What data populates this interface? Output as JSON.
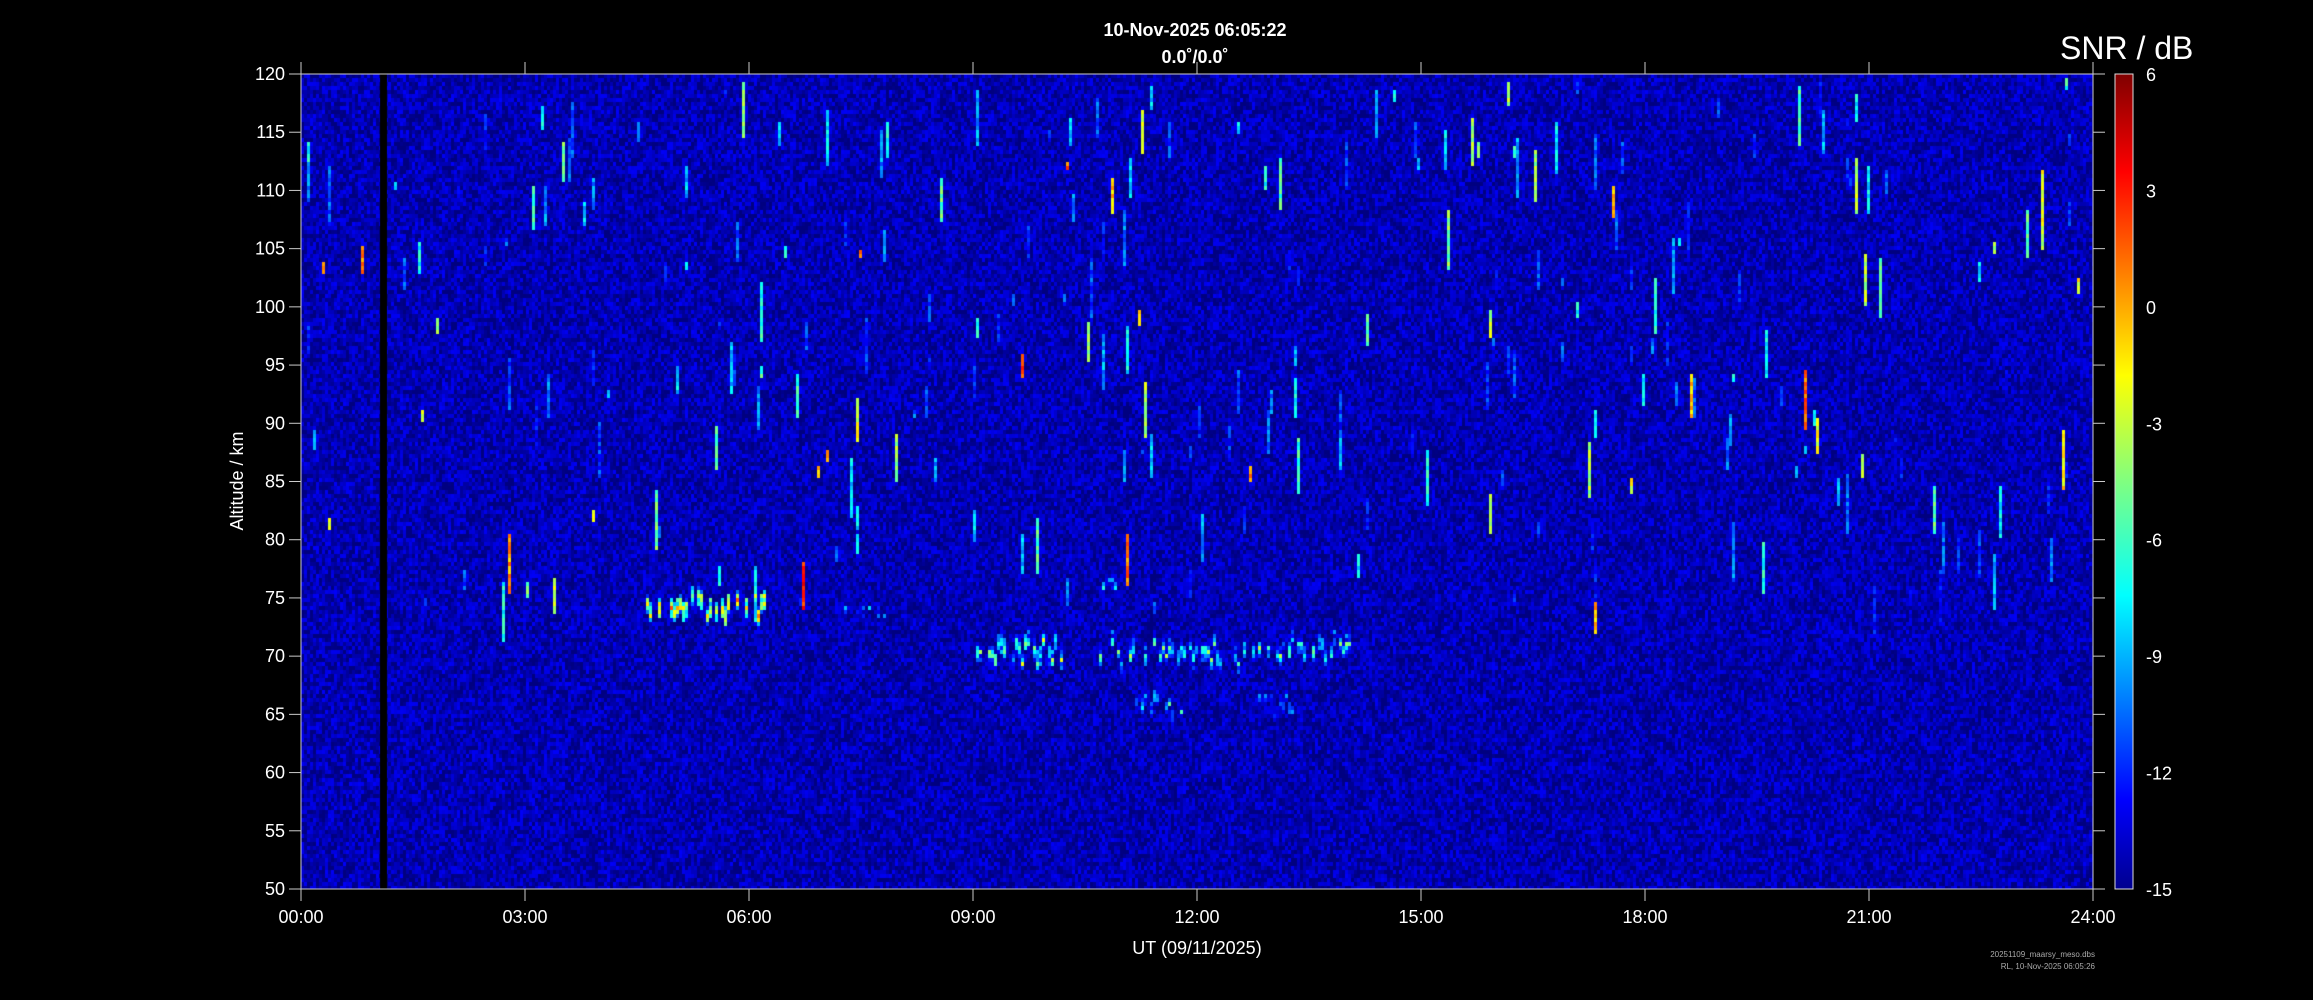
{
  "chart_data": {
    "type": "heatmap",
    "title": "10-Nov-2025 06:05:22",
    "subtitle": "0.0˚/0.0˚",
    "xlabel": "UT (09/11/2025)",
    "ylabel": "Altitude / km",
    "xlim": [
      0,
      24
    ],
    "ylim": [
      50,
      120
    ],
    "xticks": [
      "00:00",
      "03:00",
      "06:00",
      "09:00",
      "12:00",
      "15:00",
      "18:00",
      "21:00",
      "24:00"
    ],
    "yticks": [
      50,
      55,
      60,
      65,
      70,
      75,
      80,
      85,
      90,
      95,
      100,
      105,
      110,
      115,
      120
    ],
    "colorbar": {
      "label": "SNR / dB",
      "range": [
        -15,
        6
      ],
      "ticks": [
        6,
        3,
        0,
        -3,
        -6,
        -9,
        -12,
        -15
      ],
      "colormap": "jet"
    },
    "background_snr_db": -14,
    "data_gap_hours": [
      1.05,
      1.15
    ],
    "echo_features": [
      {
        "t_start": 4.6,
        "t_end": 6.2,
        "alt_km": 74.5,
        "peak_snr_db": 2
      },
      {
        "t_start": 9.0,
        "t_end": 10.2,
        "alt_km": 70.5,
        "peak_snr_db": -2
      },
      {
        "t_start": 10.7,
        "t_end": 14.1,
        "alt_km": 70.5,
        "peak_snr_db": -3
      },
      {
        "t_start": 11.2,
        "t_end": 11.8,
        "alt_km": 66,
        "peak_snr_db": -5
      },
      {
        "t_start": 12.8,
        "t_end": 13.3,
        "alt_km": 66,
        "peak_snr_db": -7
      },
      {
        "t_start": 10.7,
        "t_end": 11.1,
        "alt_km": 76,
        "peak_snr_db": -6
      },
      {
        "t_start": 7.3,
        "t_end": 7.8,
        "alt_km": 73.5,
        "peak_snr_db": -7
      }
    ]
  },
  "footer": {
    "file": "20251109_maarsy_meso.dbs",
    "stamp": "RL, 10-Nov-2025 06:05:26"
  }
}
